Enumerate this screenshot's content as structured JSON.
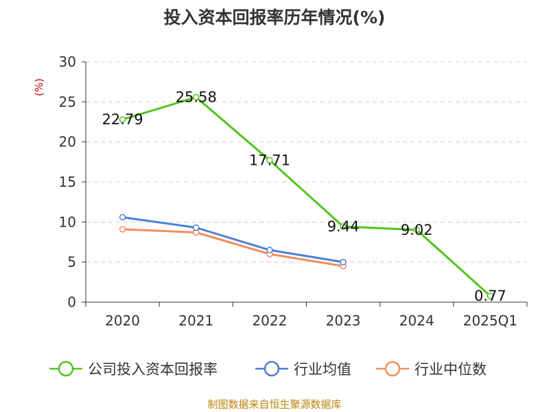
{
  "chart_data": {
    "type": "line",
    "title": "投入资本回报率历年情况(%)",
    "ylabel": "(%)",
    "xlabel": "",
    "categories": [
      "2020",
      "2021",
      "2022",
      "2023",
      "2024",
      "2025Q1"
    ],
    "ylim": [
      0,
      30
    ],
    "yticks": [
      0,
      5,
      10,
      15,
      20,
      25,
      30
    ],
    "grid": true,
    "legend_position": "bottom",
    "series": [
      {
        "name": "公司投入资本回报率",
        "color": "#52c41a",
        "values": [
          22.79,
          25.58,
          17.71,
          9.44,
          9.02,
          0.77
        ],
        "labels": [
          "22.79",
          "25.58",
          "17.71",
          "9.44",
          "9.02",
          "0.77"
        ]
      },
      {
        "name": "行业均值",
        "color": "#4a7fd8",
        "values": [
          10.6,
          9.3,
          6.5,
          5.0,
          null,
          null
        ]
      },
      {
        "name": "行业中位数",
        "color": "#f28c5b",
        "values": [
          9.1,
          8.7,
          6.0,
          4.5,
          null,
          null
        ]
      }
    ]
  },
  "source_note": "制图数据来自恒生聚源数据库"
}
